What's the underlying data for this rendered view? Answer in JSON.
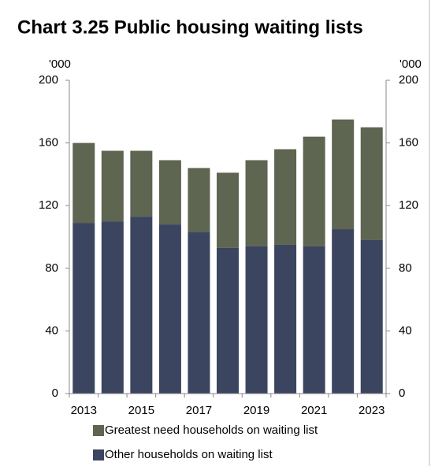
{
  "chart_data": {
    "type": "stacked_bar",
    "title": "Chart 3.25  Public housing waiting lists",
    "y_label": "'000",
    "y2_label": "'000",
    "categories": [
      "2013",
      null,
      "2015",
      null,
      "2017",
      null,
      "2019",
      null,
      "2021",
      null,
      "2023"
    ],
    "series": [
      {
        "name": "Greatest need households on waiting list",
        "color": "#5e6550",
        "values": [
          51,
          45,
          42,
          41,
          41,
          48,
          55,
          61,
          70,
          70,
          72
        ]
      },
      {
        "name": "Other households on waiting list",
        "color": "#3b4560",
        "values": [
          109,
          110,
          113,
          108,
          103,
          93,
          94,
          95,
          94,
          105,
          98
        ]
      }
    ],
    "ylim": [
      0,
      200
    ],
    "yticks": [
      0,
      40,
      80,
      120,
      160,
      200
    ],
    "y2lim": [
      0,
      200
    ],
    "y2ticks": [
      0,
      40,
      80,
      120,
      160,
      200
    ]
  }
}
